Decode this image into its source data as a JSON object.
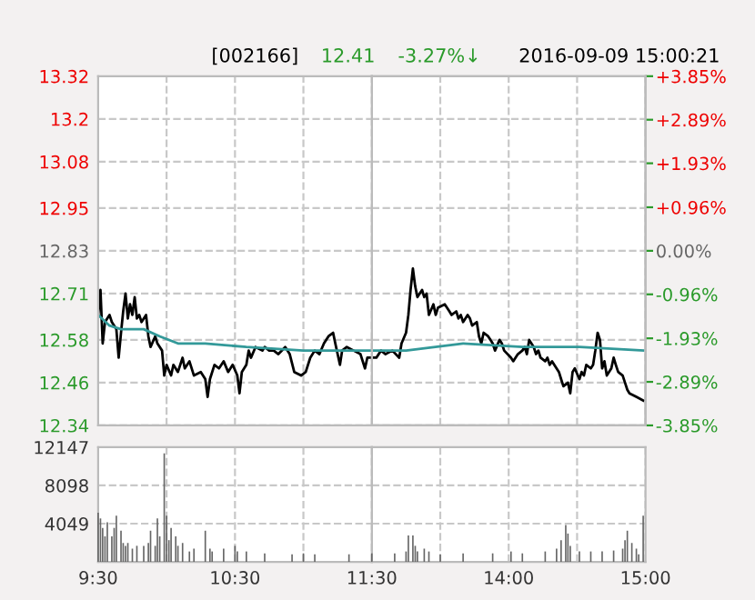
{
  "chart_data": [
    {
      "type": "line",
      "title": "[002166]",
      "annotations": [
        "12.41",
        "-3.27%↓",
        "2016-09-09 15:00:21"
      ],
      "xlim": [
        9.5,
        11.5
      ],
      "xticks": [
        {
          "value": 9.5,
          "label": null
        },
        {
          "value": 10,
          "label": null
        },
        {
          "value": 10.5,
          "label": null
        },
        {
          "value": 11,
          "label": null
        },
        {
          "value": 11.5,
          "label": null
        }
      ],
      "ylim": [
        12.34,
        13.32
      ],
      "yticks": [
        12.34,
        12.46,
        12.58,
        12.71,
        12.83,
        12.95,
        13.08,
        13.2,
        13.32
      ],
      "grid": true,
      "tick_labels": "y",
      "marker": "none",
      "line_style": "solid",
      "series": [
        {
          "color": "#000000",
          "x": [
            9.5,
            9.517,
            9.533,
            9.55,
            9.583,
            9.6,
            9.633,
            9.65,
            9.667,
            9.683,
            9.7,
            9.717,
            9.733,
            9.75,
            9.767,
            9.783,
            9.8,
            9.817,
            9.85,
            9.867,
            9.883,
            9.917,
            9.933,
            9.967,
            9.983,
            10,
            10.033,
            10.05,
            10.083,
            10.117,
            10.133,
            10.167,
            10.2,
            10.25,
            10.283,
            10.3,
            10.317,
            10.35,
            10.383,
            10.417,
            10.45,
            10.483,
            10.517,
            10.533,
            10.55,
            10.583,
            10.6,
            10.617,
            10.65,
            10.7,
            10.717,
            10.75,
            10.783,
            10.817,
            10.867,
            10.9,
            10.933,
            10.983,
            11.017,
            11.05,
            11.083,
            11.117,
            11.15,
            11.183,
            11.217,
            11.233,
            11.267,
            11.283,
            11.317,
            11.367,
            11.417,
            11.45,
            11.467,
            11.5
          ],
          "values": [
            12.65,
            12.72,
            12.57,
            12.63,
            12.65,
            12.63,
            12.61,
            12.53,
            12.6,
            12.66,
            12.71,
            12.64,
            12.68,
            12.65,
            12.7,
            12.64,
            12.65,
            12.63,
            12.65,
            12.59,
            12.56,
            12.59,
            12.57,
            12.55,
            12.48,
            12.51,
            12.48,
            12.51,
            12.49,
            12.53,
            12.5,
            12.52,
            12.48,
            12.49,
            12.47,
            12.42,
            12.47,
            12.51,
            12.5,
            12.52,
            12.49,
            12.51,
            12.48,
            12.43,
            12.49,
            12.51,
            12.55,
            12.53,
            12.56,
            12.55,
            12.56,
            12.55,
            12.55,
            12.54,
            12.56,
            12.54,
            12.49,
            12.48,
            12.49,
            12.53,
            12.55,
            12.54,
            12.57,
            12.59,
            12.6,
            12.57,
            12.51,
            12.55,
            12.56,
            12.55,
            12.54,
            12.5,
            12.53,
            12.53
          ]
        },
        {
          "color": "#339999",
          "x": [
            9.5,
            9.583,
            9.667,
            9.833,
            9.95,
            10.083,
            10.283,
            10.583,
            11,
            11.5
          ],
          "values": [
            12.65,
            12.62,
            12.61,
            12.61,
            12.59,
            12.57,
            12.57,
            12.56,
            12.55,
            12.55
          ]
        }
      ]
    },
    {
      "type": "line",
      "xlim": [
        13,
        15
      ],
      "xticks": [
        {
          "value": 13,
          "label": null
        },
        {
          "value": 13.5,
          "label": null
        },
        {
          "value": 14,
          "label": null
        },
        {
          "value": 14.5,
          "label": null
        },
        {
          "value": 15,
          "label": null
        }
      ],
      "ylim": [
        12.34,
        13.32
      ],
      "yticks": [
        12.34,
        12.46,
        12.58,
        12.71,
        12.83,
        12.95,
        13.08,
        13.2,
        13.32
      ],
      "y2lim": [
        -3.85,
        3.85
      ],
      "y2ticks": [
        {
          "value": -3.85,
          "label": "-3.85%"
        },
        {
          "value": -2.89,
          "label": "-2.89%"
        },
        {
          "value": -1.93,
          "label": "-1.93%"
        },
        {
          "value": -0.96,
          "label": "-0.96%"
        },
        {
          "value": 0,
          "label": "0.00%"
        },
        {
          "value": 0.96,
          "label": "+0.96%"
        },
        {
          "value": 1.93,
          "label": "+1.93%"
        },
        {
          "value": 2.89,
          "label": "+2.89%"
        },
        {
          "value": 3.85,
          "label": "+3.85%"
        }
      ],
      "grid": true,
      "tick_labels": false,
      "marker": "none",
      "line_style": "solid",
      "series": [
        {
          "color": "#000000",
          "x": [
            13,
            13.033,
            13.067,
            13.1,
            13.15,
            13.2,
            13.217,
            13.25,
            13.267,
            13.283,
            13.3,
            13.317,
            13.333,
            13.367,
            13.383,
            13.4,
            13.417,
            13.45,
            13.467,
            13.483,
            13.533,
            13.567,
            13.583,
            13.617,
            13.633,
            13.65,
            13.667,
            13.7,
            13.717,
            13.733,
            13.767,
            13.783,
            13.8,
            13.817,
            13.85,
            13.867,
            13.883,
            13.9,
            13.933,
            13.95,
            13.967,
            14.017,
            14.033,
            14.05,
            14.067,
            14.1,
            14.117,
            14.133,
            14.15,
            14.183,
            14.2,
            14.217,
            14.233,
            14.267,
            14.283,
            14.3,
            14.317,
            14.35,
            14.367,
            14.383,
            14.4,
            14.433,
            14.45,
            14.467,
            14.483,
            14.517,
            14.533,
            14.55,
            14.567,
            14.6,
            14.617,
            14.633,
            14.65,
            14.667,
            14.683,
            14.7,
            14.717,
            14.75,
            14.767,
            14.783,
            14.8,
            14.833,
            14.85,
            14.867,
            14.883,
            14.933,
            14.983
          ],
          "values": [
            12.53,
            12.53,
            12.55,
            12.54,
            12.55,
            12.53,
            12.57,
            12.6,
            12.65,
            12.72,
            12.78,
            12.73,
            12.7,
            12.72,
            12.7,
            12.71,
            12.65,
            12.68,
            12.65,
            12.67,
            12.68,
            12.66,
            12.65,
            12.66,
            12.64,
            12.65,
            12.63,
            12.65,
            12.64,
            12.62,
            12.63,
            12.59,
            12.57,
            12.6,
            12.59,
            12.58,
            12.57,
            12.55,
            12.58,
            12.57,
            12.55,
            12.53,
            12.52,
            12.53,
            12.54,
            12.55,
            12.56,
            12.54,
            12.58,
            12.56,
            12.54,
            12.55,
            12.53,
            12.52,
            12.53,
            12.51,
            12.52,
            12.5,
            12.49,
            12.47,
            12.45,
            12.46,
            12.43,
            12.49,
            12.5,
            12.47,
            12.49,
            12.48,
            12.51,
            12.5,
            12.51,
            12.55,
            12.6,
            12.58,
            12.5,
            12.52,
            12.48,
            12.5,
            12.53,
            12.51,
            12.49,
            12.48,
            12.46,
            12.44,
            12.43,
            12.42,
            12.41
          ]
        },
        {
          "color": "#339999",
          "x": [
            13,
            13.25,
            13.667,
            14.1,
            14.517,
            14.983
          ],
          "values": [
            12.55,
            12.55,
            12.57,
            12.56,
            12.56,
            12.55
          ]
        }
      ]
    },
    {
      "type": "bar",
      "color": "#666666",
      "x": [
        9.5,
        9.517,
        9.533,
        9.55,
        9.567,
        9.6,
        9.617,
        9.633,
        9.667,
        9.683,
        9.7,
        9.717,
        9.75,
        9.783,
        9.833,
        9.867,
        9.883,
        9.917,
        9.933,
        9.95,
        9.983,
        10,
        10.017,
        10.033,
        10.067,
        10.083,
        10.117,
        10.167,
        10.2,
        10.283,
        10.317,
        10.333,
        10.417,
        10.5,
        10.517,
        10.583,
        10.717,
        10.917,
        11,
        11.083,
        11.333,
        11.5
      ],
      "values": [
        5200,
        4600,
        3600,
        2700,
        4200,
        2700,
        3600,
        4900,
        3300,
        2000,
        1700,
        2000,
        1400,
        1700,
        1700,
        2000,
        3300,
        1700,
        4600,
        2700,
        11500,
        4900,
        2300,
        3600,
        2700,
        1700,
        2000,
        1100,
        1400,
        3300,
        1400,
        1100,
        1400,
        1700,
        1100,
        1100,
        900,
        800,
        900,
        800,
        800,
        900
      ],
      "xlim": [
        9.5,
        11.5
      ],
      "xticks": [
        {
          "value": 9.5,
          "label": "9:30"
        },
        {
          "value": 10,
          "label": null
        },
        {
          "value": 10.5,
          "label": "10:30"
        },
        {
          "value": 11,
          "label": null
        },
        {
          "value": 11.5,
          "label": "11:30"
        }
      ],
      "ylim": [
        0,
        12147
      ],
      "yticks": [
        4049,
        8098,
        12147
      ],
      "grid": true
    },
    {
      "type": "bar",
      "color": "#666666",
      "x": [
        13.167,
        13.25,
        13.267,
        13.3,
        13.317,
        13.333,
        13.383,
        13.417,
        13.5,
        13.667,
        13.883,
        14.017,
        14.1,
        14.267,
        14.35,
        14.383,
        14.417,
        14.433,
        14.45,
        14.517,
        14.6,
        14.683,
        14.767,
        14.833,
        14.85,
        14.867,
        14.9,
        14.933,
        14.95,
        14.983
      ],
      "values": [
        900,
        1100,
        2800,
        2800,
        1700,
        1100,
        1400,
        1100,
        800,
        900,
        900,
        1100,
        900,
        1100,
        1400,
        2300,
        3900,
        3000,
        1700,
        1100,
        1100,
        1100,
        1200,
        1400,
        2300,
        3300,
        2000,
        1400,
        800,
        4900
      ],
      "xlim": [
        13,
        15
      ],
      "xticks": [
        {
          "value": 13,
          "label": null
        },
        {
          "value": 13.5,
          "label": null
        },
        {
          "value": 14,
          "label": "14:00"
        },
        {
          "value": 14.5,
          "label": null
        },
        {
          "value": 15,
          "label": "15:00"
        }
      ],
      "ylim": [
        0,
        12147
      ],
      "yticks": [
        4049,
        8098,
        12147
      ],
      "grid": true,
      "tick_labels": "x"
    }
  ]
}
